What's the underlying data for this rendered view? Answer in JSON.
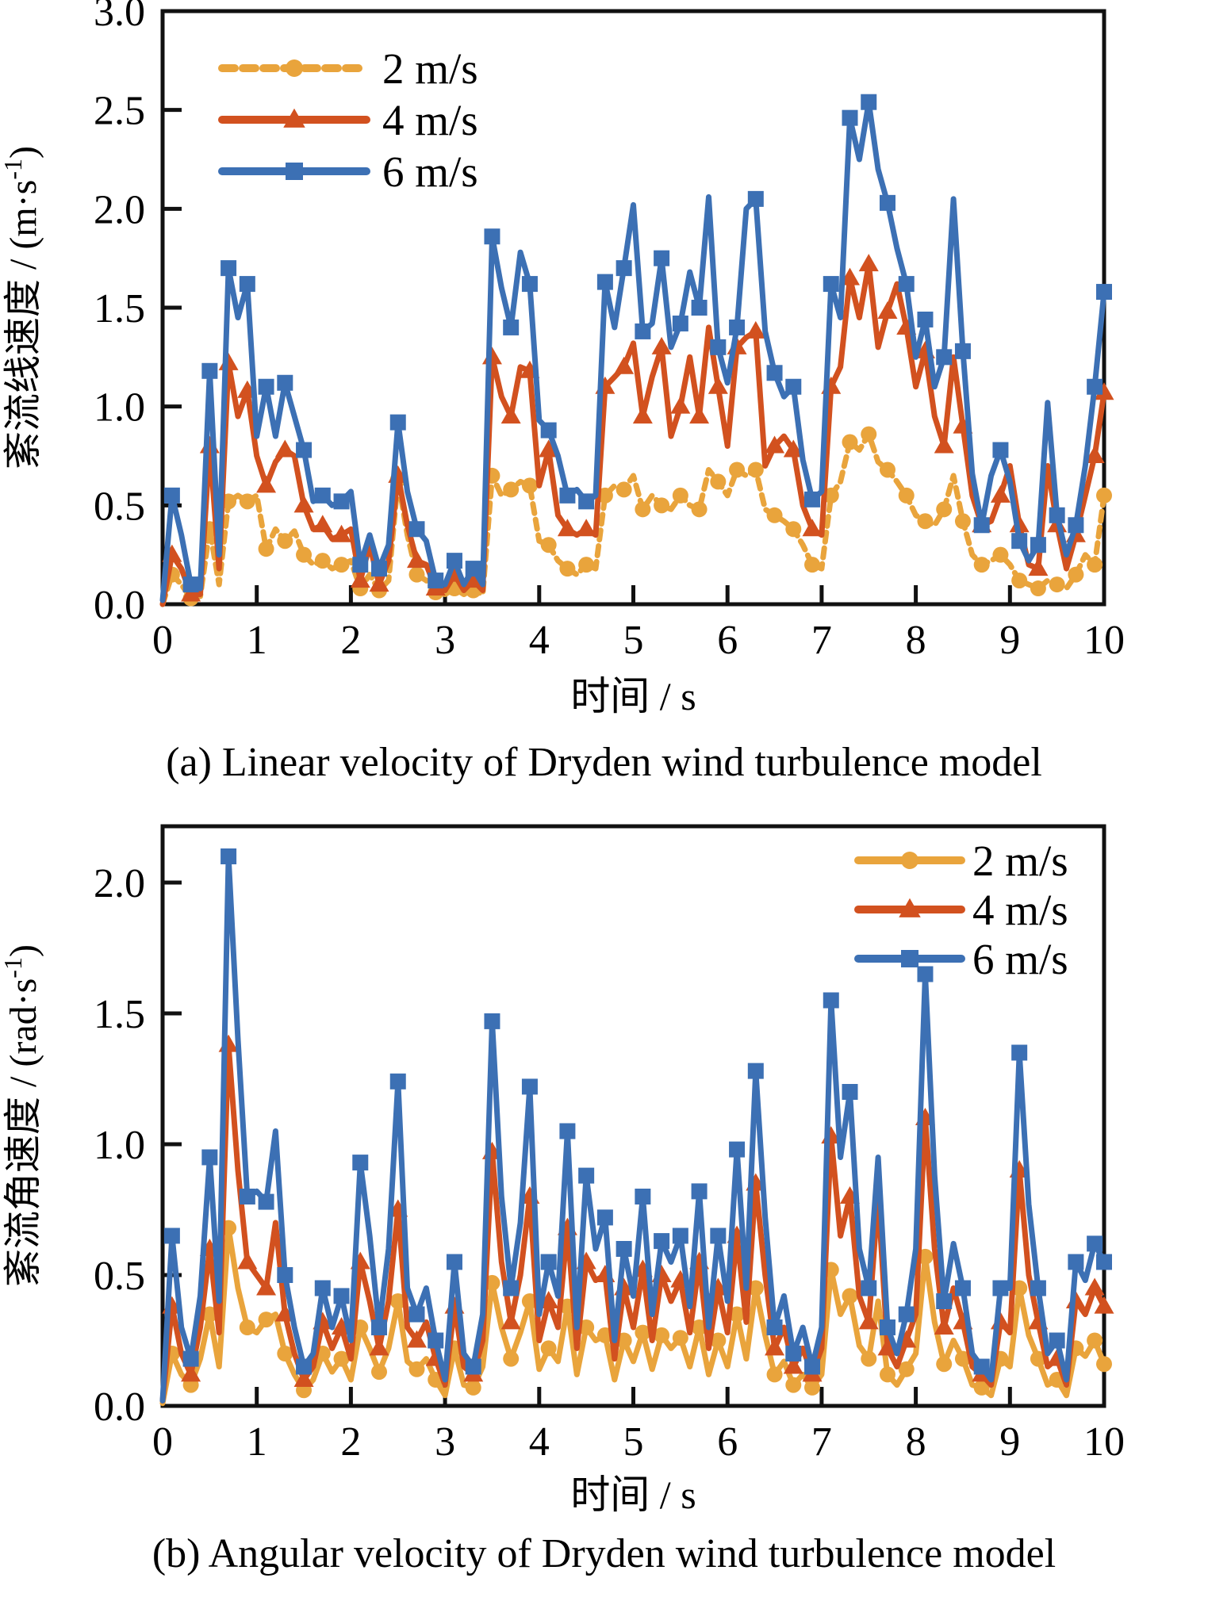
{
  "figure": {
    "background": "#ffffff",
    "axis_color": "#111111"
  },
  "chart_data": [
    {
      "type": "line",
      "id": "a",
      "caption": "(a) Linear velocity of Dryden wind turbulence model",
      "xlabel": "时间 / s",
      "ylabel": {
        "base": "紊流线速度 / (m·s",
        "sup": "-1",
        "close": ")"
      },
      "x_range": [
        0,
        10
      ],
      "y_range": [
        0,
        3.0
      ],
      "x_step": 0.1,
      "x_ticks": [
        "0",
        "1",
        "2",
        "3",
        "4",
        "5",
        "6",
        "7",
        "8",
        "9",
        "10"
      ],
      "y_ticks": [
        "0.0",
        "0.5",
        "1.0",
        "1.5",
        "2.0",
        "2.5",
        "3.0"
      ],
      "grid": false,
      "legend_position": "top-left",
      "series": [
        {
          "name": "2 m/s",
          "color": "#E9A43C",
          "marker": "circle",
          "dashed": true,
          "values": [
            0.0,
            0.15,
            0.1,
            0.03,
            0.04,
            0.38,
            0.1,
            0.52,
            0.55,
            0.52,
            0.55,
            0.28,
            0.38,
            0.32,
            0.37,
            0.25,
            0.2,
            0.22,
            0.18,
            0.2,
            0.22,
            0.08,
            0.15,
            0.07,
            0.12,
            0.63,
            0.35,
            0.15,
            0.12,
            0.06,
            0.05,
            0.08,
            0.05,
            0.07,
            0.05,
            0.65,
            0.55,
            0.58,
            0.62,
            0.6,
            0.32,
            0.3,
            0.22,
            0.18,
            0.15,
            0.2,
            0.18,
            0.55,
            0.6,
            0.58,
            0.65,
            0.48,
            0.55,
            0.5,
            0.48,
            0.55,
            0.5,
            0.48,
            0.68,
            0.62,
            0.55,
            0.68,
            0.65,
            0.68,
            0.48,
            0.45,
            0.42,
            0.38,
            0.3,
            0.2,
            0.18,
            0.55,
            0.62,
            0.82,
            0.78,
            0.86,
            0.72,
            0.68,
            0.62,
            0.55,
            0.45,
            0.42,
            0.4,
            0.48,
            0.65,
            0.42,
            0.25,
            0.2,
            0.22,
            0.25,
            0.2,
            0.12,
            0.1,
            0.08,
            0.12,
            0.1,
            0.08,
            0.15,
            0.25,
            0.2,
            0.55
          ]
        },
        {
          "name": "4 m/s",
          "color": "#D2511F",
          "marker": "triangle",
          "dashed": false,
          "values": [
            0.0,
            0.25,
            0.18,
            0.05,
            0.05,
            0.8,
            0.18,
            1.22,
            0.95,
            1.08,
            0.75,
            0.6,
            0.72,
            0.78,
            0.75,
            0.5,
            0.38,
            0.4,
            0.33,
            0.35,
            0.38,
            0.12,
            0.3,
            0.1,
            0.22,
            0.65,
            0.4,
            0.22,
            0.2,
            0.08,
            0.07,
            0.15,
            0.07,
            0.12,
            0.07,
            1.25,
            1.05,
            0.95,
            1.2,
            1.18,
            0.6,
            0.78,
            0.45,
            0.38,
            0.35,
            0.38,
            0.35,
            1.1,
            1.15,
            1.2,
            1.32,
            0.95,
            1.15,
            1.3,
            0.85,
            1.0,
            1.25,
            0.95,
            1.4,
            1.1,
            0.8,
            1.3,
            1.35,
            1.38,
            0.7,
            0.8,
            0.85,
            0.78,
            0.5,
            0.38,
            0.35,
            1.1,
            1.2,
            1.65,
            1.45,
            1.72,
            1.3,
            1.48,
            1.62,
            1.4,
            1.1,
            1.28,
            0.95,
            0.8,
            1.25,
            0.9,
            0.55,
            0.4,
            0.42,
            0.55,
            0.7,
            0.4,
            0.2,
            0.18,
            0.7,
            0.4,
            0.18,
            0.35,
            0.55,
            0.75,
            1.07
          ]
        },
        {
          "name": "6 m/s",
          "color": "#3C70B4",
          "marker": "square",
          "dashed": false,
          "values": [
            0.02,
            0.55,
            0.35,
            0.1,
            0.08,
            1.18,
            0.25,
            1.7,
            1.45,
            1.62,
            0.85,
            1.1,
            0.85,
            1.12,
            0.95,
            0.78,
            0.52,
            0.55,
            0.5,
            0.52,
            0.57,
            0.2,
            0.35,
            0.18,
            0.3,
            0.92,
            0.57,
            0.38,
            0.32,
            0.12,
            0.1,
            0.22,
            0.1,
            0.18,
            0.1,
            1.86,
            1.6,
            1.4,
            1.78,
            1.62,
            0.93,
            0.88,
            0.75,
            0.55,
            0.58,
            0.52,
            0.55,
            1.63,
            1.4,
            1.7,
            2.02,
            1.38,
            1.42,
            1.75,
            1.3,
            1.42,
            1.68,
            1.5,
            2.06,
            1.3,
            1.12,
            1.4,
            2.0,
            2.05,
            1.38,
            1.17,
            1.05,
            1.1,
            0.73,
            0.53,
            0.57,
            1.62,
            1.45,
            2.46,
            2.25,
            2.54,
            2.2,
            2.03,
            1.8,
            1.62,
            1.25,
            1.44,
            1.1,
            1.25,
            2.05,
            1.28,
            0.66,
            0.4,
            0.65,
            0.78,
            0.62,
            0.32,
            0.22,
            0.3,
            1.02,
            0.45,
            0.25,
            0.4,
            0.7,
            1.1,
            1.58
          ]
        }
      ]
    },
    {
      "type": "line",
      "id": "b",
      "caption": "(b) Angular velocity of Dryden wind turbulence model",
      "xlabel": "时间 / s",
      "ylabel": {
        "base": "紊流角速度 / (rad·s",
        "sup": "-1",
        "close": ")"
      },
      "x_range": [
        0,
        10
      ],
      "y_range": [
        0,
        2.2
      ],
      "x_step": 0.1,
      "x_ticks": [
        "0",
        "1",
        "2",
        "3",
        "4",
        "5",
        "6",
        "7",
        "8",
        "9",
        "10"
      ],
      "y_ticks": [
        "0.0",
        "0.5",
        "1.0",
        "1.5",
        "2.0"
      ],
      "grid": false,
      "legend_position": "top-right",
      "series": [
        {
          "name": "2 m/s",
          "color": "#E9A43C",
          "marker": "circle",
          "dashed": false,
          "values": [
            0.01,
            0.2,
            0.12,
            0.08,
            0.18,
            0.35,
            0.15,
            0.68,
            0.45,
            0.3,
            0.28,
            0.33,
            0.35,
            0.2,
            0.12,
            0.06,
            0.1,
            0.2,
            0.13,
            0.18,
            0.1,
            0.3,
            0.22,
            0.13,
            0.22,
            0.4,
            0.17,
            0.14,
            0.18,
            0.1,
            0.04,
            0.22,
            0.08,
            0.07,
            0.15,
            0.47,
            0.3,
            0.18,
            0.28,
            0.4,
            0.14,
            0.22,
            0.17,
            0.38,
            0.12,
            0.3,
            0.25,
            0.27,
            0.1,
            0.25,
            0.17,
            0.28,
            0.14,
            0.27,
            0.22,
            0.26,
            0.15,
            0.3,
            0.12,
            0.25,
            0.15,
            0.35,
            0.18,
            0.45,
            0.27,
            0.12,
            0.17,
            0.08,
            0.12,
            0.07,
            0.12,
            0.52,
            0.35,
            0.42,
            0.23,
            0.18,
            0.4,
            0.12,
            0.08,
            0.14,
            0.2,
            0.57,
            0.32,
            0.16,
            0.25,
            0.18,
            0.08,
            0.07,
            0.04,
            0.18,
            0.15,
            0.45,
            0.27,
            0.18,
            0.08,
            0.1,
            0.04,
            0.22,
            0.19,
            0.25,
            0.16
          ]
        },
        {
          "name": "4 m/s",
          "color": "#D2511F",
          "marker": "triangle",
          "dashed": false,
          "values": [
            0.02,
            0.38,
            0.2,
            0.12,
            0.3,
            0.6,
            0.28,
            1.38,
            0.9,
            0.55,
            0.5,
            0.45,
            0.7,
            0.35,
            0.2,
            0.1,
            0.15,
            0.32,
            0.22,
            0.3,
            0.18,
            0.55,
            0.4,
            0.22,
            0.4,
            0.75,
            0.3,
            0.25,
            0.32,
            0.18,
            0.08,
            0.38,
            0.15,
            0.12,
            0.25,
            0.97,
            0.55,
            0.32,
            0.5,
            0.8,
            0.25,
            0.4,
            0.3,
            0.68,
            0.22,
            0.55,
            0.48,
            0.5,
            0.18,
            0.45,
            0.3,
            0.52,
            0.25,
            0.5,
            0.4,
            0.48,
            0.28,
            0.55,
            0.22,
            0.45,
            0.28,
            0.65,
            0.32,
            0.85,
            0.5,
            0.22,
            0.3,
            0.15,
            0.22,
            0.12,
            0.22,
            1.03,
            0.65,
            0.8,
            0.42,
            0.32,
            0.8,
            0.22,
            0.15,
            0.25,
            0.35,
            1.1,
            0.6,
            0.3,
            0.45,
            0.32,
            0.15,
            0.12,
            0.08,
            0.32,
            0.28,
            0.9,
            0.5,
            0.32,
            0.15,
            0.18,
            0.08,
            0.4,
            0.35,
            0.45,
            0.38
          ]
        },
        {
          "name": "6 m/s",
          "color": "#3C70B4",
          "marker": "square",
          "dashed": false,
          "values": [
            0.02,
            0.65,
            0.3,
            0.18,
            0.42,
            0.95,
            0.4,
            2.1,
            1.4,
            0.8,
            0.82,
            0.78,
            1.05,
            0.5,
            0.3,
            0.15,
            0.2,
            0.45,
            0.3,
            0.42,
            0.25,
            0.93,
            0.65,
            0.3,
            0.6,
            1.24,
            0.45,
            0.35,
            0.45,
            0.25,
            0.1,
            0.55,
            0.2,
            0.15,
            0.35,
            1.47,
            0.8,
            0.45,
            0.7,
            1.22,
            0.35,
            0.55,
            0.42,
            1.05,
            0.3,
            0.88,
            0.6,
            0.72,
            0.25,
            0.6,
            0.42,
            0.8,
            0.35,
            0.63,
            0.55,
            0.65,
            0.38,
            0.82,
            0.3,
            0.65,
            0.4,
            0.98,
            0.45,
            1.28,
            0.72,
            0.3,
            0.42,
            0.2,
            0.3,
            0.15,
            0.3,
            1.55,
            0.95,
            1.2,
            0.6,
            0.45,
            0.95,
            0.3,
            0.2,
            0.35,
            0.6,
            1.65,
            0.88,
            0.4,
            0.62,
            0.45,
            0.2,
            0.15,
            0.1,
            0.45,
            0.45,
            1.35,
            0.77,
            0.45,
            0.2,
            0.25,
            0.1,
            0.55,
            0.48,
            0.62,
            0.55
          ]
        }
      ]
    }
  ]
}
